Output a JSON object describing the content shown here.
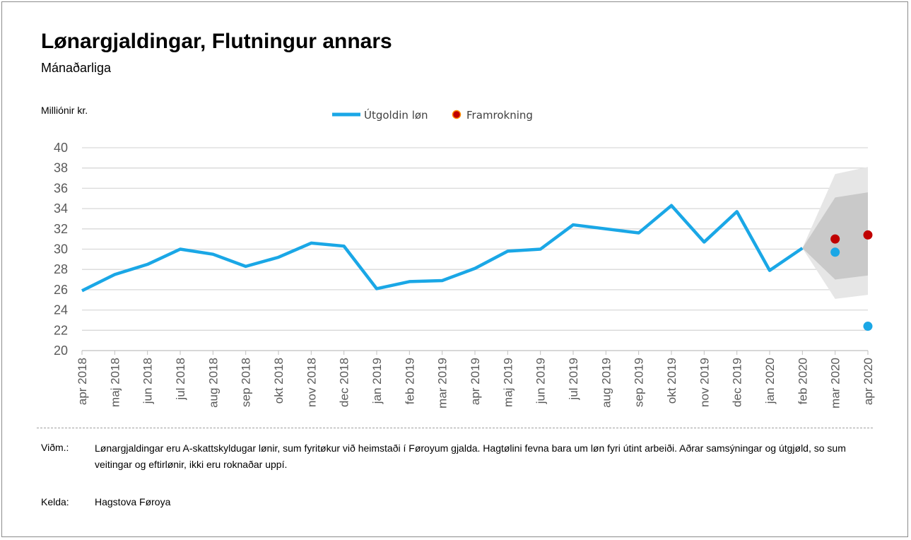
{
  "title": "Lønargjaldingar, Flutningur annars",
  "subtitle": "Mánaðarliga",
  "unit_label": "Milliónir kr.",
  "note": {
    "label": "Viðm.:",
    "text": "Lønargjaldingar eru A-skattskyldugar lønir, sum fyritøkur við heimstaði í Føroyum gjalda. Hagtølini fevna bara um løn fyri útint arbeiði. Aðrar samsýningar og útgjøld, so sum veitingar og eftirlønir, ikki eru roknaðar uppí."
  },
  "source": {
    "label": "Kelda:",
    "text": "Hagstova Føroya"
  },
  "colors": {
    "line": "#1aa7e6",
    "forecast": "#c00000",
    "band_outer": "#e6e6e6",
    "band_inner": "#c9c9c9",
    "grid": "#d9d9d9"
  },
  "chart_data": {
    "type": "line",
    "ylabel": "Milliónir kr.",
    "ylim": [
      20,
      40
    ],
    "yticks": [
      20,
      22,
      24,
      26,
      28,
      30,
      32,
      34,
      36,
      38,
      40
    ],
    "categories": [
      "apr 2018",
      "maj 2018",
      "jun 2018",
      "jul 2018",
      "aug 2018",
      "sep 2018",
      "okt 2018",
      "nov 2018",
      "dec 2018",
      "jan 2019",
      "feb 2019",
      "mar 2019",
      "apr 2019",
      "maj 2019",
      "jun 2019",
      "jul 2019",
      "aug 2019",
      "sep 2019",
      "okt 2019",
      "nov 2019",
      "dec 2019",
      "jan 2020",
      "feb 2020",
      "mar 2020",
      "apr 2020"
    ],
    "series": [
      {
        "name": "Útgoldin løn",
        "type": "line",
        "values": [
          25.9,
          27.5,
          28.5,
          30.0,
          29.5,
          28.3,
          29.2,
          30.6,
          30.3,
          26.1,
          26.8,
          26.9,
          28.1,
          29.8,
          30.0,
          32.4,
          32.0,
          31.6,
          34.3,
          30.7,
          33.7,
          27.9,
          30.1,
          29.7,
          22.4
        ]
      },
      {
        "name": "Framrokning",
        "type": "scatter",
        "points": [
          {
            "x": "mar 2020",
            "y": 31.0
          },
          {
            "x": "apr 2020",
            "y": 31.4
          }
        ]
      }
    ],
    "forecast_band": {
      "start": "feb 2020",
      "start_value": 30.1,
      "inner": {
        "mar 2020": [
          27.0,
          35.1
        ],
        "apr 2020": [
          27.4,
          35.6
        ]
      },
      "outer": {
        "mar 2020": [
          25.1,
          37.4
        ],
        "apr 2020": [
          25.5,
          38.1
        ]
      }
    }
  }
}
